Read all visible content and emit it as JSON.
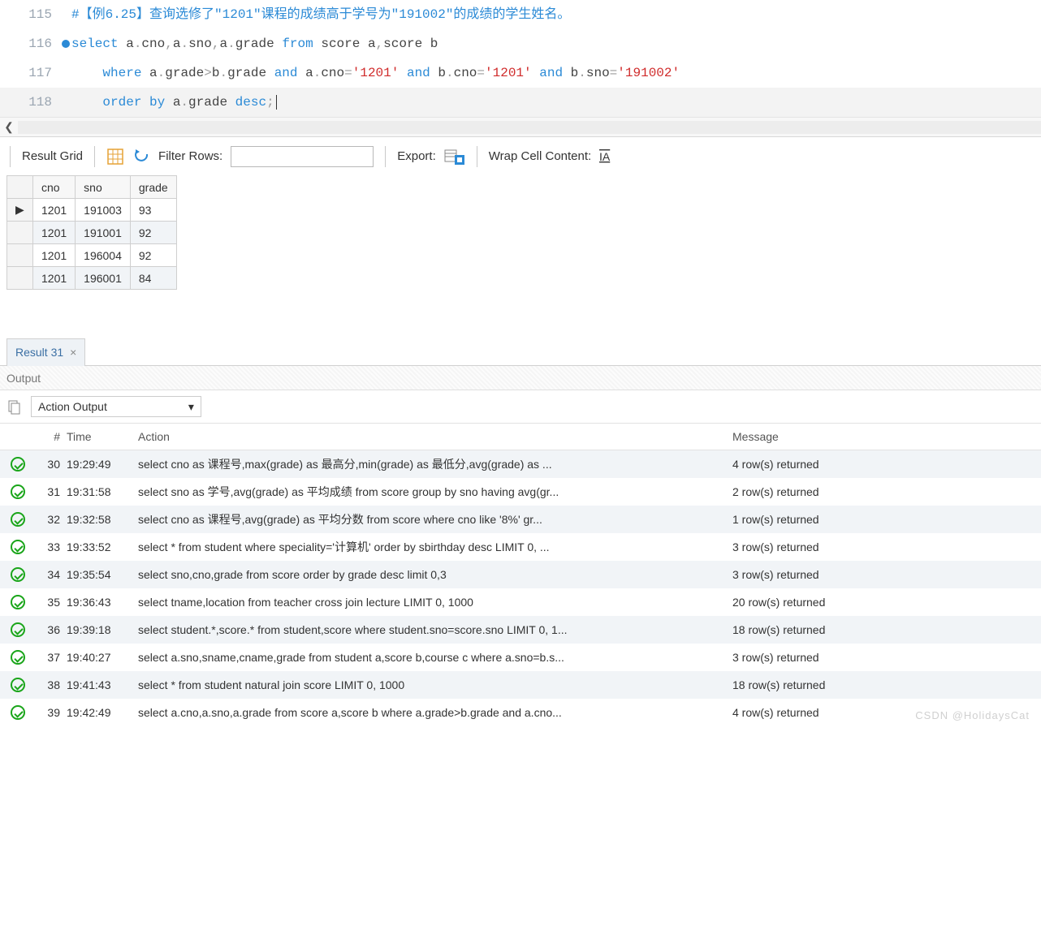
{
  "editor": {
    "lines": [
      {
        "num": "115",
        "bp": false,
        "tokens": [
          {
            "t": "#【例6.25】查询选修了\"1201\"课程的成绩高于学号为\"191002\"的成绩的学生姓名。",
            "cls": "comment"
          }
        ]
      },
      {
        "num": "116",
        "bp": true,
        "tokens": [
          {
            "t": "select",
            "cls": "kw"
          },
          {
            "t": " a",
            "cls": "id"
          },
          {
            "t": ".",
            "cls": "op"
          },
          {
            "t": "cno",
            "cls": "id"
          },
          {
            "t": ",",
            "cls": "op"
          },
          {
            "t": "a",
            "cls": "id"
          },
          {
            "t": ".",
            "cls": "op"
          },
          {
            "t": "sno",
            "cls": "id"
          },
          {
            "t": ",",
            "cls": "op"
          },
          {
            "t": "a",
            "cls": "id"
          },
          {
            "t": ".",
            "cls": "op"
          },
          {
            "t": "grade",
            "cls": "id"
          },
          {
            "t": " ",
            "cls": ""
          },
          {
            "t": "from",
            "cls": "kw"
          },
          {
            "t": " score a",
            "cls": "id"
          },
          {
            "t": ",",
            "cls": "op"
          },
          {
            "t": "score b",
            "cls": "id"
          }
        ]
      },
      {
        "num": "117",
        "bp": false,
        "indent": "    ",
        "tokens": [
          {
            "t": "where",
            "cls": "kw"
          },
          {
            "t": " a",
            "cls": "id"
          },
          {
            "t": ".",
            "cls": "op"
          },
          {
            "t": "grade",
            "cls": "id"
          },
          {
            "t": ">",
            "cls": "op"
          },
          {
            "t": "b",
            "cls": "id"
          },
          {
            "t": ".",
            "cls": "op"
          },
          {
            "t": "grade",
            "cls": "id"
          },
          {
            "t": " ",
            "cls": ""
          },
          {
            "t": "and",
            "cls": "kw"
          },
          {
            "t": " a",
            "cls": "id"
          },
          {
            "t": ".",
            "cls": "op"
          },
          {
            "t": "cno",
            "cls": "id"
          },
          {
            "t": "=",
            "cls": "op"
          },
          {
            "t": "'1201'",
            "cls": "str"
          },
          {
            "t": " ",
            "cls": ""
          },
          {
            "t": "and",
            "cls": "kw"
          },
          {
            "t": " b",
            "cls": "id"
          },
          {
            "t": ".",
            "cls": "op"
          },
          {
            "t": "cno",
            "cls": "id"
          },
          {
            "t": "=",
            "cls": "op"
          },
          {
            "t": "'1201'",
            "cls": "str"
          },
          {
            "t": " ",
            "cls": ""
          },
          {
            "t": "and",
            "cls": "kw"
          },
          {
            "t": " b",
            "cls": "id"
          },
          {
            "t": ".",
            "cls": "op"
          },
          {
            "t": "sno",
            "cls": "id"
          },
          {
            "t": "=",
            "cls": "op"
          },
          {
            "t": "'191002'",
            "cls": "str"
          }
        ]
      },
      {
        "num": "118",
        "bp": false,
        "indent": "    ",
        "cursor": true,
        "tokens": [
          {
            "t": "order by",
            "cls": "kw"
          },
          {
            "t": " a",
            "cls": "id"
          },
          {
            "t": ".",
            "cls": "op"
          },
          {
            "t": "grade",
            "cls": "id"
          },
          {
            "t": " ",
            "cls": ""
          },
          {
            "t": "desc",
            "cls": "kw"
          },
          {
            "t": ";",
            "cls": "op"
          }
        ]
      }
    ]
  },
  "toolbar": {
    "result_grid": "Result Grid",
    "filter_rows": "Filter Rows:",
    "export_label": "Export:",
    "wrap_label": "Wrap Cell Content:"
  },
  "result": {
    "columns": [
      "cno",
      "sno",
      "grade"
    ],
    "rows": [
      [
        "1201",
        "191003",
        "93"
      ],
      [
        "1201",
        "191001",
        "92"
      ],
      [
        "1201",
        "196004",
        "92"
      ],
      [
        "1201",
        "196001",
        "84"
      ]
    ]
  },
  "result_tab": "Result 31",
  "output_title": "Output",
  "action_output_label": "Action Output",
  "log_columns": {
    "num": "#",
    "time": "Time",
    "action": "Action",
    "msg": "Message"
  },
  "logs": [
    {
      "n": "30",
      "time": "19:29:49",
      "action": "select cno as 课程号,max(grade) as 最高分,min(grade) as 最低分,avg(grade) as ...",
      "msg": "4 row(s) returned"
    },
    {
      "n": "31",
      "time": "19:31:58",
      "action": "select sno as 学号,avg(grade) as 平均成绩 from score group by sno having avg(gr...",
      "msg": "2 row(s) returned"
    },
    {
      "n": "32",
      "time": "19:32:58",
      "action": "select cno as 课程号,avg(grade) as 平均分数 from score where cno like '8%'   gr...",
      "msg": "1 row(s) returned"
    },
    {
      "n": "33",
      "time": "19:33:52",
      "action": "select * from student where speciality='计算机'   order by sbirthday desc LIMIT 0, ...",
      "msg": "3 row(s) returned"
    },
    {
      "n": "34",
      "time": "19:35:54",
      "action": "select sno,cno,grade from score order by grade desc    limit 0,3",
      "msg": "3 row(s) returned"
    },
    {
      "n": "35",
      "time": "19:36:43",
      "action": "select tname,location from teacher cross join lecture LIMIT 0, 1000",
      "msg": "20 row(s) returned"
    },
    {
      "n": "36",
      "time": "19:39:18",
      "action": "select student.*,score.* from student,score where student.sno=score.sno LIMIT 0, 1...",
      "msg": "18 row(s) returned"
    },
    {
      "n": "37",
      "time": "19:40:27",
      "action": "select a.sno,sname,cname,grade from student a,score b,course c where a.sno=b.s...",
      "msg": "3 row(s) returned"
    },
    {
      "n": "38",
      "time": "19:41:43",
      "action": "select * from student natural join score LIMIT 0, 1000",
      "msg": "18 row(s) returned"
    },
    {
      "n": "39",
      "time": "19:42:49",
      "action": "select a.cno,a.sno,a.grade from score a,score b where a.grade>b.grade and a.cno...",
      "msg": "4 row(s) returned"
    }
  ],
  "watermark": "CSDN @HolidaysCat"
}
